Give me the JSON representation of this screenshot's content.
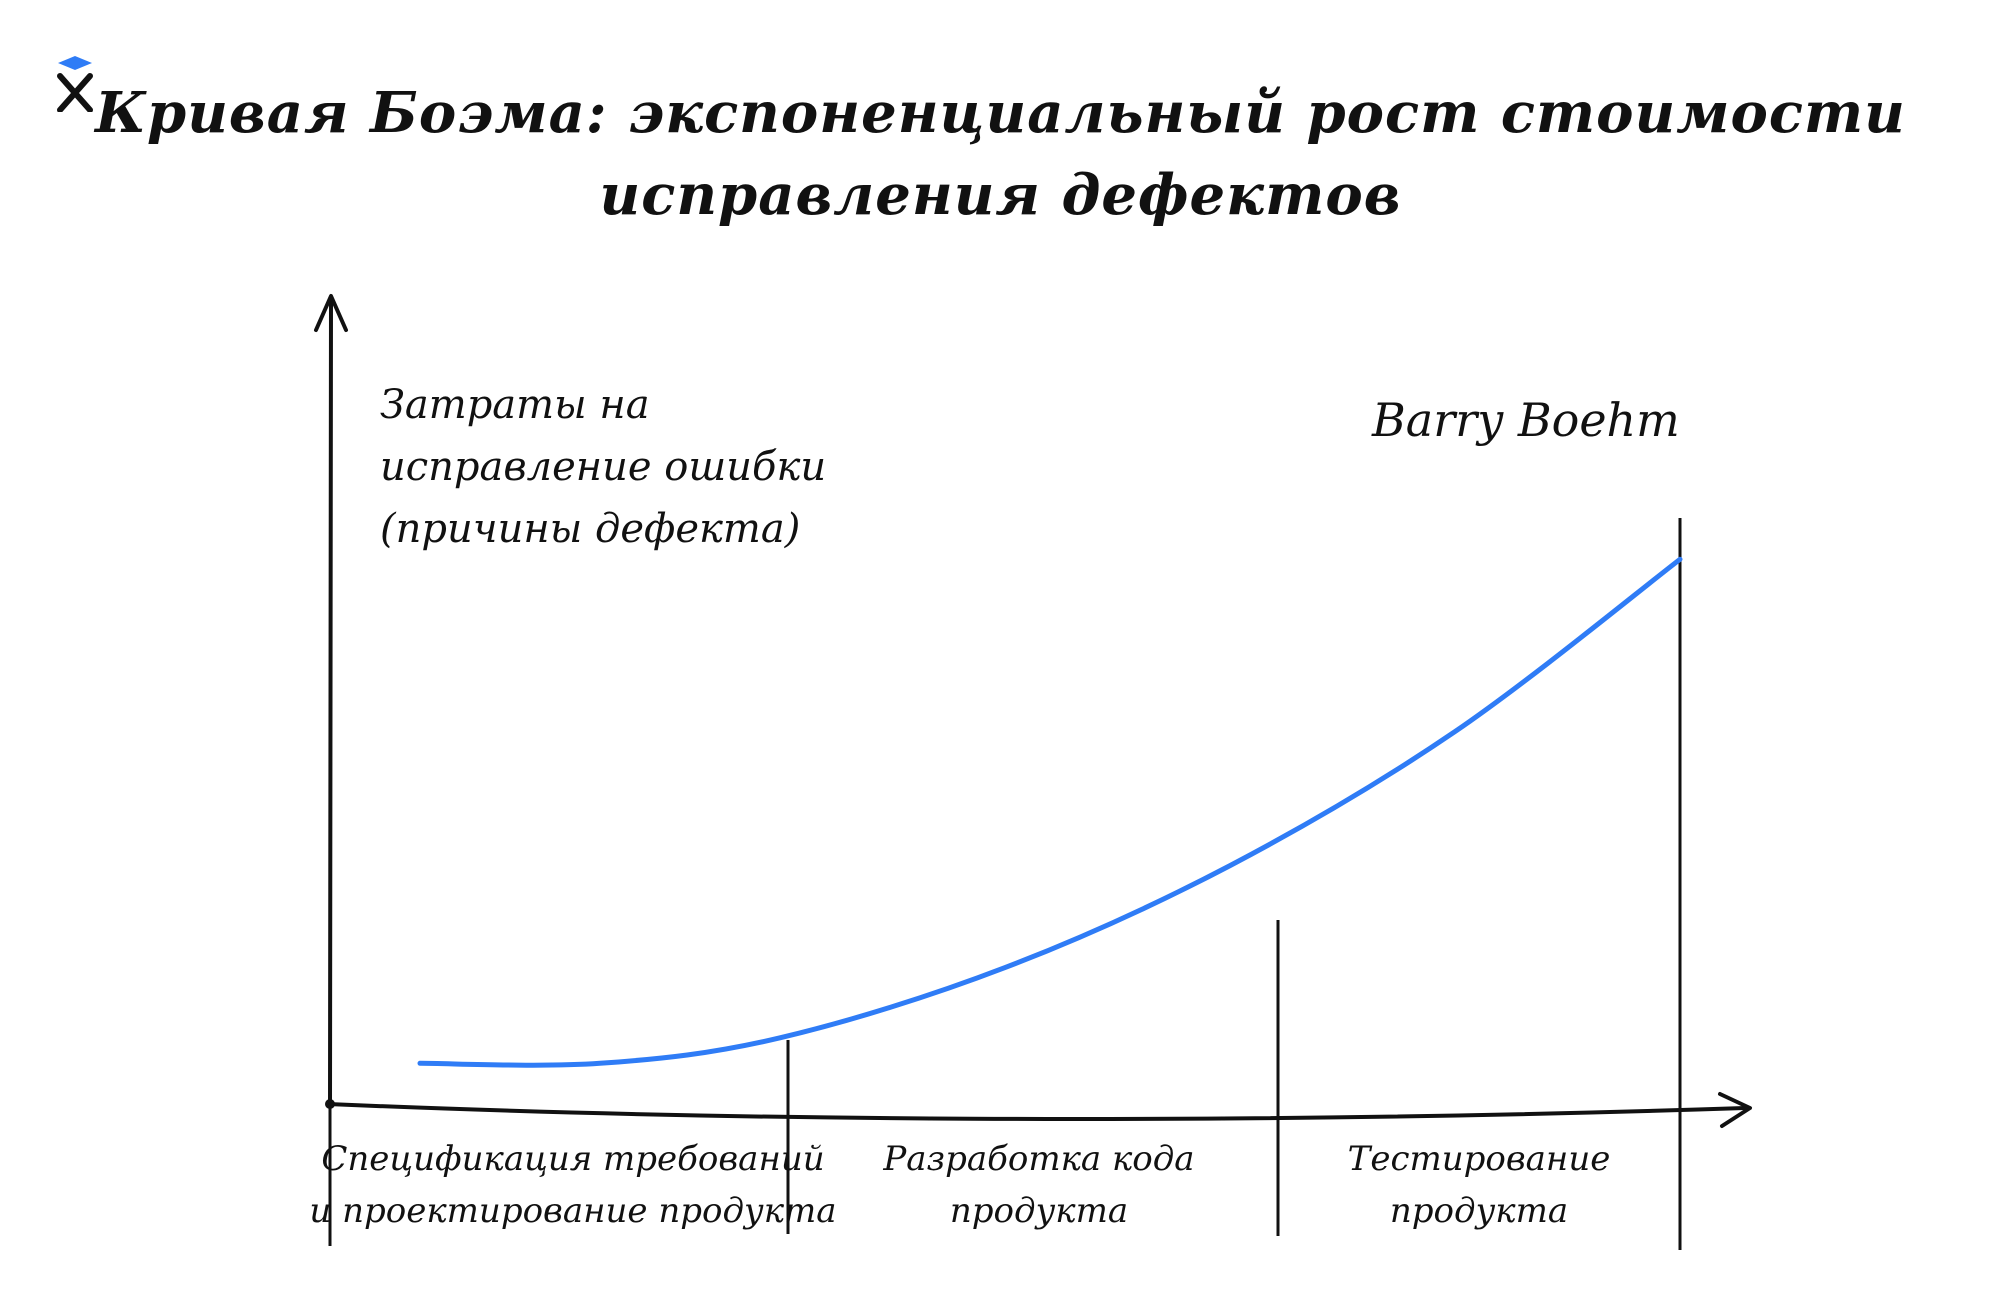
{
  "logo": {
    "icon": "x-logo-icon",
    "accent": "#2f7cf6"
  },
  "title": {
    "line1": "Кривая Боэма: экспоненциальный рост стоимости",
    "line2": "исправления дефектов"
  },
  "chart_data": {
    "type": "line",
    "ylabel": [
      "Затраты на",
      "исправление ошибки",
      "(причины дефекта)"
    ],
    "annotation": "Barry Boehm",
    "categories": [
      {
        "lines": [
          "Спецификация требований",
          "и проектирование продукта"
        ]
      },
      {
        "lines": [
          "Разработка кода",
          "продукта"
        ]
      },
      {
        "lines": [
          "Тестирование",
          "продукта"
        ]
      }
    ],
    "x_range": [
      0,
      3
    ],
    "ylim": [
      0,
      100
    ],
    "series": [
      {
        "color": "#2f7cf6",
        "x": [
          0.2,
          0.6,
          1.0,
          1.5,
          2.0,
          2.5,
          3.0
        ],
        "y": [
          7,
          7,
          11,
          22,
          38,
          59,
          86
        ]
      }
    ],
    "grid": false,
    "colors": {
      "axis": "#111111",
      "curve": "#2f7cf6"
    }
  }
}
